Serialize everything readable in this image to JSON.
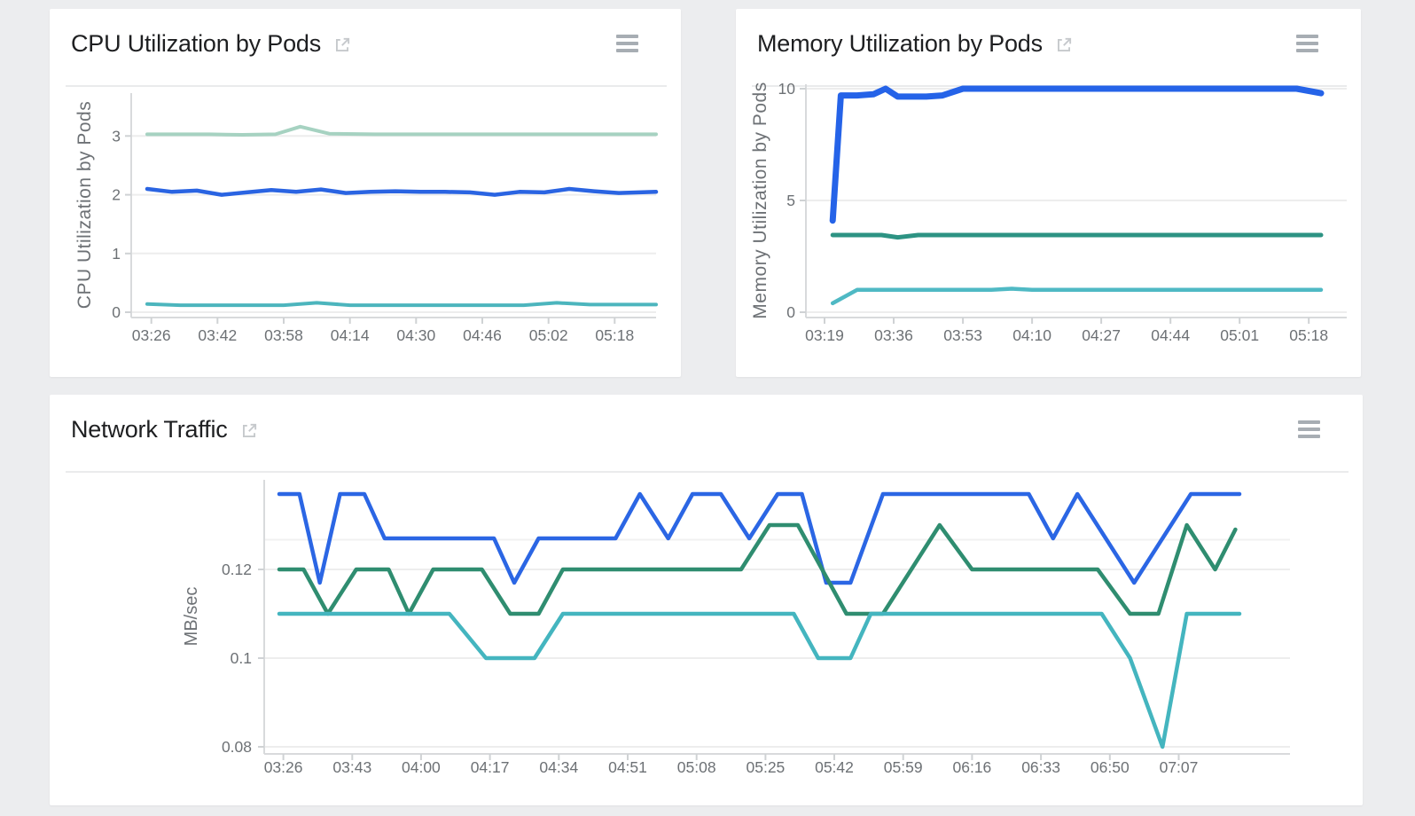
{
  "page": {
    "background": "#ecedef"
  },
  "colors": {
    "card_bg": "#ffffff",
    "title_text": "#1e1f21",
    "divider": "#eaebec",
    "grid_line": "#ededed",
    "minor_grid_line": "#f1f1f1",
    "axis_line": "#d8dadc",
    "tick_mark": "#cfd2d4",
    "tick_label": "#6d7175",
    "axis_title": "#6d7175",
    "menu_icon": "#a7adb3",
    "open_in_new_icon": "#c6c9cc"
  },
  "icons": {
    "title_action": "open-in-new",
    "card_action": "hamburger-menu"
  },
  "chart_data": [
    {
      "id": "cpu-utilization-by-pods",
      "type": "line",
      "title": "CPU Utilization by Pods",
      "xlabel": "",
      "ylabel": "CPU Utilization by Pods",
      "legend": "none",
      "grid": "horizontal",
      "x_tick_labels": [
        "03:26",
        "03:42",
        "03:58",
        "04:14",
        "04:30",
        "04:46",
        "05:02",
        "05:18"
      ],
      "y_ticks": [
        0,
        1,
        2,
        3
      ],
      "y_tick_labels": [
        "0",
        "1",
        "2",
        "3"
      ],
      "ylim": [
        -0.09,
        3.73
      ],
      "series": [
        {
          "name": "series-1",
          "color": "#a6d2c1",
          "points": [
            [
              "03:25",
              3.03
            ],
            [
              "03:40",
              3.03
            ],
            [
              "03:48",
              3.02
            ],
            [
              "03:56",
              3.03
            ],
            [
              "04:02",
              3.16
            ],
            [
              "04:09",
              3.04
            ],
            [
              "04:20",
              3.03
            ],
            [
              "05:28",
              3.03
            ]
          ]
        },
        {
          "name": "series-2",
          "color": "#2a64e2",
          "points": [
            [
              "03:25",
              2.1
            ],
            [
              "03:31",
              2.05
            ],
            [
              "03:37",
              2.07
            ],
            [
              "03:43",
              2.0
            ],
            [
              "03:49",
              2.04
            ],
            [
              "03:55",
              2.08
            ],
            [
              "04:01",
              2.05
            ],
            [
              "04:07",
              2.09
            ],
            [
              "04:13",
              2.03
            ],
            [
              "04:19",
              2.05
            ],
            [
              "04:25",
              2.06
            ],
            [
              "04:31",
              2.05
            ],
            [
              "04:37",
              2.05
            ],
            [
              "04:43",
              2.04
            ],
            [
              "04:49",
              2.0
            ],
            [
              "04:55",
              2.05
            ],
            [
              "05:01",
              2.04
            ],
            [
              "05:07",
              2.1
            ],
            [
              "05:13",
              2.06
            ],
            [
              "05:19",
              2.03
            ],
            [
              "05:28",
              2.05
            ]
          ]
        },
        {
          "name": "series-3",
          "color": "#4cb5bd",
          "points": [
            [
              "03:25",
              0.14
            ],
            [
              "03:33",
              0.12
            ],
            [
              "03:58",
              0.12
            ],
            [
              "04:06",
              0.16
            ],
            [
              "04:14",
              0.12
            ],
            [
              "04:56",
              0.12
            ],
            [
              "05:04",
              0.16
            ],
            [
              "05:12",
              0.13
            ],
            [
              "05:28",
              0.13
            ]
          ]
        }
      ]
    },
    {
      "id": "memory-utilization-by-pods",
      "type": "line",
      "title": "Memory Utilization by Pods",
      "xlabel": "",
      "ylabel": "Memory Utilization by Pods",
      "legend": "none",
      "grid": "horizontal",
      "x_tick_labels": [
        "03:19",
        "03:36",
        "03:53",
        "04:10",
        "04:27",
        "04:44",
        "05:01",
        "05:18"
      ],
      "y_ticks": [
        0,
        5,
        10
      ],
      "y_tick_labels": [
        "0",
        "5",
        "10"
      ],
      "ylim": [
        -0.24,
        10.2
      ],
      "series": [
        {
          "name": "series-1",
          "color": "#2563e8",
          "points": [
            [
              "03:21",
              4.1
            ],
            [
              "03:23",
              9.7
            ],
            [
              "03:27",
              9.7
            ],
            [
              "03:31",
              9.75
            ],
            [
              "03:34",
              10.0
            ],
            [
              "03:37",
              9.65
            ],
            [
              "03:44",
              9.65
            ],
            [
              "03:48",
              9.7
            ],
            [
              "03:53",
              10.0
            ],
            [
              "05:15",
              10.0
            ],
            [
              "05:21",
              9.8
            ]
          ]
        },
        {
          "name": "series-2",
          "color": "#2d9383",
          "points": [
            [
              "03:21",
              3.45
            ],
            [
              "03:33",
              3.45
            ],
            [
              "03:37",
              3.35
            ],
            [
              "03:42",
              3.45
            ],
            [
              "05:21",
              3.45
            ]
          ]
        },
        {
          "name": "series-3",
          "color": "#4fb9c4",
          "points": [
            [
              "03:21",
              0.4
            ],
            [
              "03:27",
              1.0
            ],
            [
              "04:00",
              1.0
            ],
            [
              "04:05",
              1.05
            ],
            [
              "04:10",
              1.0
            ],
            [
              "05:21",
              1.0
            ]
          ]
        }
      ]
    },
    {
      "id": "network-traffic",
      "type": "line",
      "title": "Network Traffic",
      "xlabel": "",
      "ylabel": "MB/sec",
      "legend": "none",
      "grid": "horizontal",
      "x_tick_labels": [
        "03:26",
        "03:43",
        "04:00",
        "04:17",
        "04:34",
        "04:51",
        "05:08",
        "05:25",
        "05:42",
        "05:59",
        "06:16",
        "06:33",
        "06:50",
        "07:07"
      ],
      "y_ticks": [
        0.08,
        0.1,
        0.12
      ],
      "y_tick_labels": [
        "0.08",
        "0.1",
        "0.12"
      ],
      "ylim": [
        0.0784,
        0.1402
      ],
      "series": [
        {
          "name": "series-1",
          "color": "#2b66e4",
          "points": [
            [
              "03:25",
              0.137
            ],
            [
              "03:30",
              0.137
            ],
            [
              "03:35",
              0.117
            ],
            [
              "03:40",
              0.137
            ],
            [
              "03:46",
              0.137
            ],
            [
              "03:51",
              0.127
            ],
            [
              "04:18",
              0.127
            ],
            [
              "04:23",
              0.117
            ],
            [
              "04:29",
              0.127
            ],
            [
              "04:48",
              0.127
            ],
            [
              "04:54",
              0.137
            ],
            [
              "05:01",
              0.127
            ],
            [
              "05:07",
              0.137
            ],
            [
              "05:14",
              0.137
            ],
            [
              "05:21",
              0.127
            ],
            [
              "05:28",
              0.137
            ],
            [
              "05:34",
              0.137
            ],
            [
              "05:40",
              0.117
            ],
            [
              "05:46",
              0.117
            ],
            [
              "05:54",
              0.137
            ],
            [
              "06:30",
              0.137
            ],
            [
              "06:36",
              0.127
            ],
            [
              "06:42",
              0.137
            ],
            [
              "06:56",
              0.117
            ],
            [
              "07:10",
              0.137
            ],
            [
              "07:22",
              0.137
            ]
          ]
        },
        {
          "name": "series-2",
          "color": "#2f8d70",
          "points": [
            [
              "03:25",
              0.12
            ],
            [
              "03:31",
              0.12
            ],
            [
              "03:37",
              0.11
            ],
            [
              "03:44",
              0.12
            ],
            [
              "03:52",
              0.12
            ],
            [
              "03:57",
              0.11
            ],
            [
              "04:03",
              0.12
            ],
            [
              "04:15",
              0.12
            ],
            [
              "04:22",
              0.11
            ],
            [
              "04:29",
              0.11
            ],
            [
              "04:35",
              0.12
            ],
            [
              "05:19",
              0.12
            ],
            [
              "05:26",
              0.13
            ],
            [
              "05:33",
              0.13
            ],
            [
              "05:45",
              0.11
            ],
            [
              "05:54",
              0.11
            ],
            [
              "06:01",
              0.12
            ],
            [
              "06:08",
              0.13
            ],
            [
              "06:16",
              0.12
            ],
            [
              "06:47",
              0.12
            ],
            [
              "06:55",
              0.11
            ],
            [
              "07:02",
              0.11
            ],
            [
              "07:09",
              0.13
            ],
            [
              "07:16",
              0.12
            ],
            [
              "07:21",
              0.129
            ]
          ]
        },
        {
          "name": "series-3",
          "color": "#44b5bf",
          "points": [
            [
              "03:25",
              0.11
            ],
            [
              "04:07",
              0.11
            ],
            [
              "04:16",
              0.1
            ],
            [
              "04:28",
              0.1
            ],
            [
              "04:35",
              0.11
            ],
            [
              "05:32",
              0.11
            ],
            [
              "05:38",
              0.1
            ],
            [
              "05:46",
              0.1
            ],
            [
              "05:51",
              0.11
            ],
            [
              "06:48",
              0.11
            ],
            [
              "06:55",
              0.1
            ],
            [
              "07:03",
              0.08
            ],
            [
              "07:09",
              0.11
            ],
            [
              "07:22",
              0.11
            ]
          ]
        }
      ]
    }
  ]
}
